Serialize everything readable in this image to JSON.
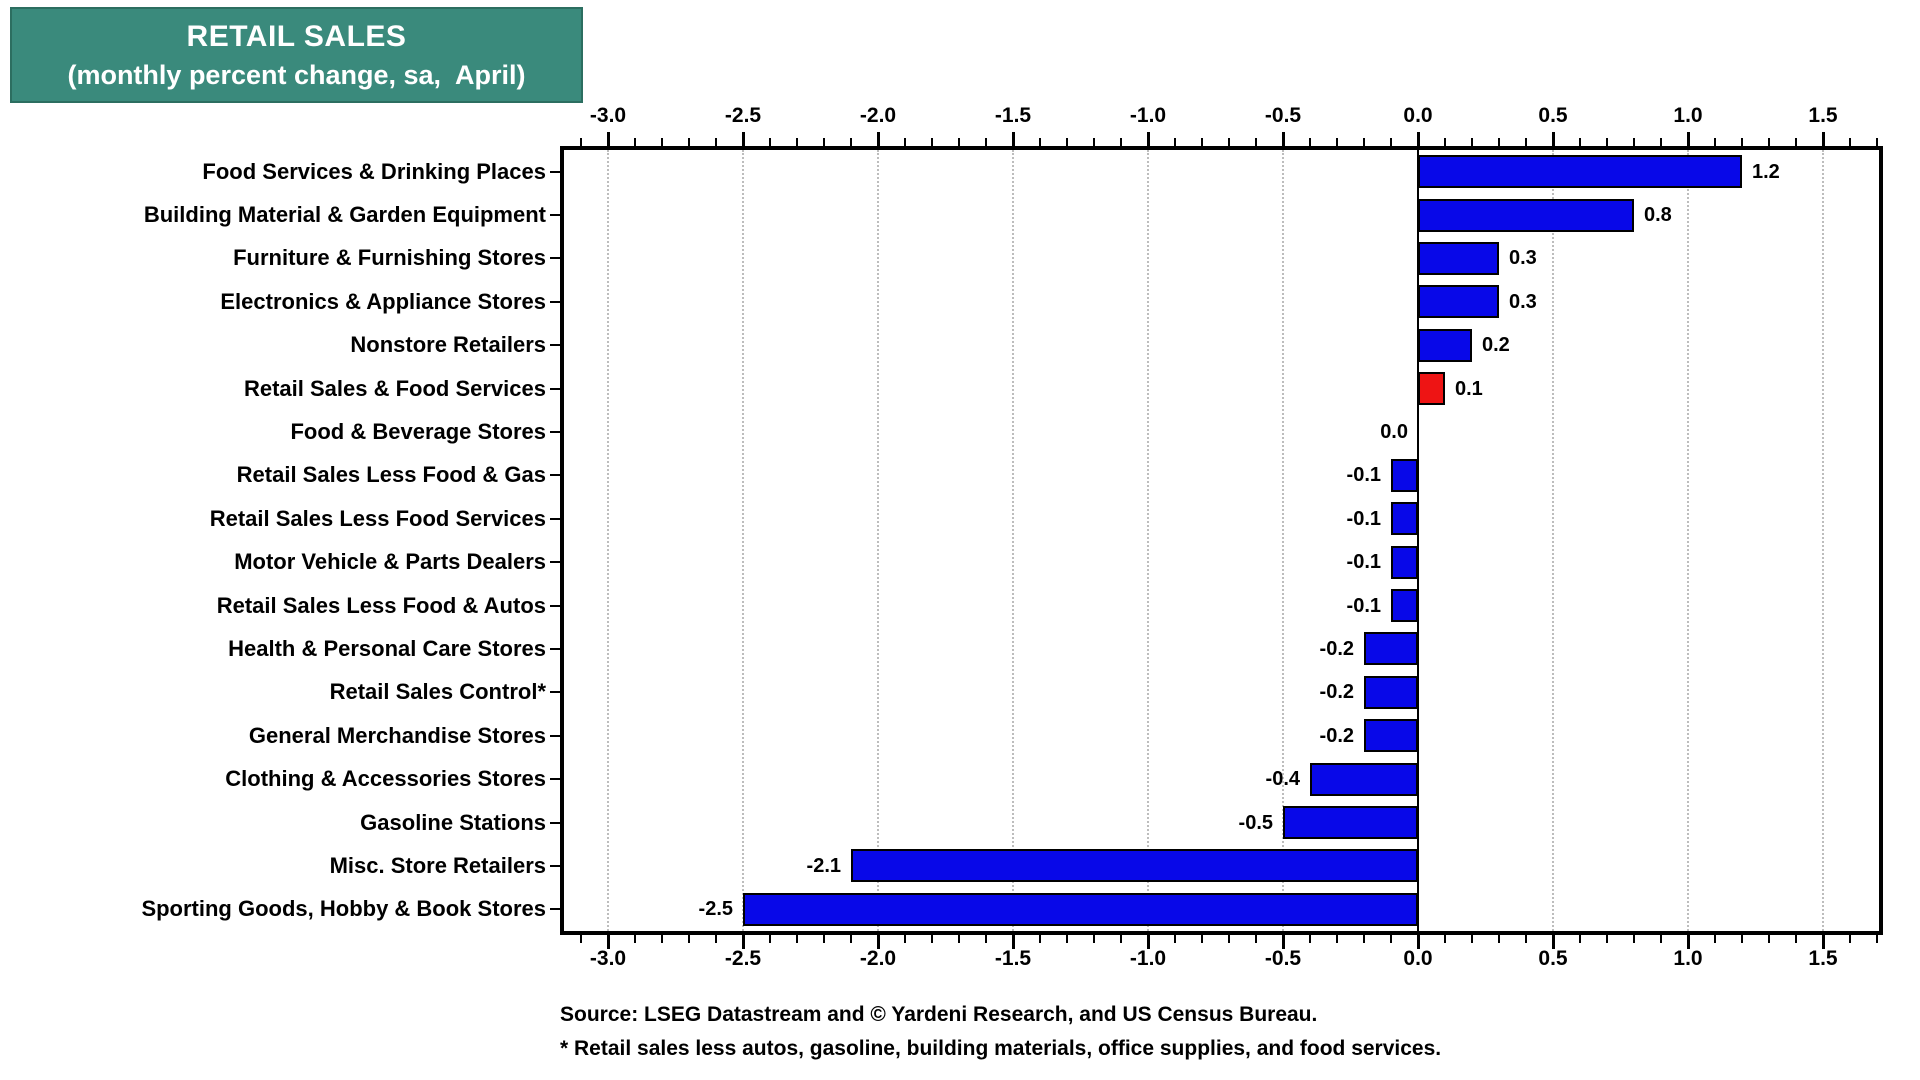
{
  "title": {
    "line1": "RETAIL SALES",
    "line2": "(monthly percent change, sa,  April)"
  },
  "chart_data": {
    "type": "bar",
    "orientation": "horizontal",
    "title": "RETAIL SALES (monthly percent change, sa, April)",
    "categories": [
      "Food Services & Drinking Places",
      "Building Material & Garden Equipment",
      "Furniture & Furnishing Stores",
      "Electronics & Appliance Stores",
      "Nonstore Retailers",
      "Retail Sales & Food Services",
      "Food & Beverage Stores",
      "Retail Sales Less Food & Gas",
      "Retail Sales Less Food Services",
      "Motor Vehicle & Parts Dealers",
      "Retail Sales Less Food & Autos",
      "Health & Personal Care Stores",
      "Retail Sales Control*",
      "General Merchandise Stores",
      "Clothing & Accessories Stores",
      "Gasoline Stations",
      "Misc. Store Retailers",
      "Sporting Goods, Hobby & Book Stores"
    ],
    "values": [
      1.2,
      0.8,
      0.3,
      0.3,
      0.2,
      0.1,
      0.0,
      -0.1,
      -0.1,
      -0.1,
      -0.1,
      -0.2,
      -0.2,
      -0.2,
      -0.4,
      -0.5,
      -2.1,
      -2.5
    ],
    "value_labels": [
      "1.2",
      "0.8",
      "0.3",
      "0.3",
      "0.2",
      "0.1",
      "0.0",
      "-0.1",
      "-0.1",
      "-0.1",
      "-0.1",
      "-0.2",
      "-0.2",
      "-0.2",
      "-0.4",
      "-0.5",
      "-2.1",
      "-2.5"
    ],
    "highlight_index": 5,
    "colors": {
      "bar": "#0808E8",
      "highlight": "#EE1414",
      "grid": "#bdbdbd",
      "axis": "#000000",
      "title_bg": "#3A8A7C"
    },
    "xlim": [
      -3.16,
      1.72
    ],
    "x_tick_values": [
      -3.0,
      -2.5,
      -2.0,
      -1.5,
      -1.0,
      -0.5,
      0.0,
      0.5,
      1.0,
      1.5
    ],
    "x_tick_labels": [
      "-3.0",
      "-2.5",
      "-2.0",
      "-1.5",
      "-1.0",
      "-0.5",
      "0.0",
      "0.5",
      "1.0",
      "1.5"
    ],
    "minor_tick_step": 0.1,
    "grid": "dotted vertical lines at major ticks",
    "zero_line": true,
    "legend": "none"
  },
  "footer": {
    "source": "Source: LSEG Datastream and © Yardeni Research, and US Census Bureau.",
    "note": "* Retail sales less autos, gasoline, building materials, office supplies, and food services."
  }
}
